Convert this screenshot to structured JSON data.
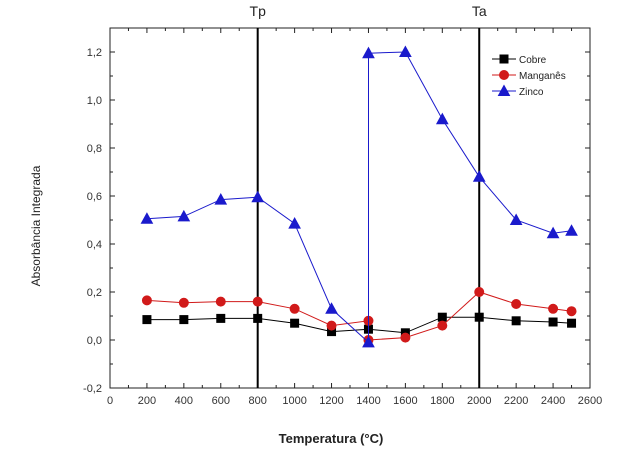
{
  "chart_data": {
    "type": "line",
    "title": "",
    "xlabel": "Temperatura (°C)",
    "ylabel": "Absorbância Integrada",
    "xlim": [
      0,
      2600
    ],
    "ylim": [
      -0.2,
      1.3
    ],
    "x_ticks": [
      0,
      200,
      400,
      600,
      800,
      1000,
      1200,
      1400,
      1600,
      1800,
      2000,
      2200,
      2400,
      2600
    ],
    "y_ticks": [
      -0.2,
      0.0,
      0.2,
      0.4,
      0.6,
      0.8,
      1.0,
      1.2
    ],
    "y_tick_labels": [
      "-0,2",
      "0,0",
      "0,2",
      "0,4",
      "0,6",
      "0,8",
      "1,0",
      "1,2"
    ],
    "grid": false,
    "legend_position": "top-right",
    "reference_lines": [
      {
        "label": "Tp",
        "x": 800
      },
      {
        "label": "Ta",
        "x": 2000
      }
    ],
    "series": [
      {
        "name": "Cobre",
        "color": "#000000",
        "marker": "square",
        "x": [
          200,
          400,
          600,
          800,
          1000,
          1200,
          1400,
          1600,
          1800,
          2000,
          2200,
          2400,
          2500
        ],
        "y": [
          0.085,
          0.085,
          0.09,
          0.09,
          0.07,
          0.035,
          0.045,
          0.03,
          0.095,
          0.095,
          0.08,
          0.075,
          0.07
        ]
      },
      {
        "name": "Manganês",
        "color": "#d11a1a",
        "marker": "circle",
        "x": [
          200,
          400,
          600,
          800,
          1000,
          1200,
          1400,
          1400,
          1600,
          1800,
          2000,
          2200,
          2400,
          2500
        ],
        "y": [
          0.165,
          0.155,
          0.16,
          0.16,
          0.13,
          0.06,
          0.08,
          0.0,
          0.01,
          0.06,
          0.2,
          0.15,
          0.13,
          0.12
        ]
      },
      {
        "name": "Zinco",
        "color": "#1a1acc",
        "marker": "triangle",
        "x": [
          200,
          400,
          600,
          800,
          1000,
          1200,
          1400,
          1400,
          1600,
          1800,
          2000,
          2200,
          2400,
          2500
        ],
        "y": [
          0.505,
          0.515,
          0.585,
          0.595,
          0.485,
          0.13,
          -0.01,
          1.195,
          1.2,
          0.92,
          0.68,
          0.5,
          0.445,
          0.455
        ]
      }
    ]
  }
}
